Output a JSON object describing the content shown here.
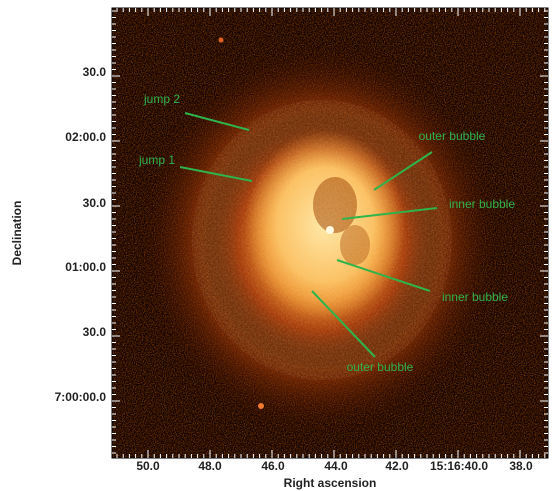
{
  "axes": {
    "x_label": "Right ascension",
    "y_label": "Declination",
    "x_ticks": [
      "50.0",
      "48.0",
      "46.0",
      "44.0",
      "42.0",
      "15:16:40.0",
      "38.0"
    ],
    "y_ticks": [
      "30.0",
      "02:00.0",
      "30.0",
      "01:00.0",
      "30.0",
      "7:00:00.0"
    ]
  },
  "annotations": [
    {
      "label": "jump 2"
    },
    {
      "label": "jump 1"
    },
    {
      "label": "outer bubble"
    },
    {
      "label": "inner bubble"
    },
    {
      "label": "inner bubble"
    },
    {
      "label": "outer bubble"
    }
  ]
}
